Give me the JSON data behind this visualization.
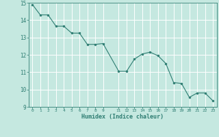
{
  "x": [
    0,
    1,
    2,
    3,
    4,
    5,
    6,
    7,
    8,
    9,
    11,
    12,
    13,
    14,
    15,
    16,
    17,
    18,
    19,
    20,
    21,
    22,
    23
  ],
  "y": [
    14.9,
    14.3,
    14.3,
    13.65,
    13.65,
    13.25,
    13.25,
    12.6,
    12.6,
    12.65,
    11.05,
    11.05,
    11.75,
    12.05,
    12.15,
    11.95,
    11.5,
    10.4,
    10.35,
    9.55,
    9.8,
    9.8,
    9.35
  ],
  "line_color": "#2e7d72",
  "marker_color": "#2e7d72",
  "bg_color": "#c5e8e0",
  "grid_color": "#ffffff",
  "xlabel": "Humidex (Indice chaleur)",
  "xlim": [
    -0.5,
    23.5
  ],
  "ylim": [
    9,
    15
  ],
  "yticks": [
    9,
    10,
    11,
    12,
    13,
    14,
    15
  ],
  "xticks": [
    0,
    1,
    2,
    3,
    4,
    5,
    6,
    7,
    8,
    9,
    11,
    12,
    13,
    14,
    15,
    16,
    17,
    18,
    19,
    20,
    21,
    22,
    23
  ],
  "xtick_labels": [
    "0",
    "1",
    "2",
    "3",
    "4",
    "5",
    "6",
    "7",
    "8",
    "9",
    "11",
    "12",
    "13",
    "14",
    "15",
    "16",
    "17",
    "18",
    "19",
    "20",
    "21",
    "22",
    "23"
  ],
  "label_color": "#2e7d72",
  "tick_color": "#2e7d72",
  "figsize": [
    3.2,
    2.0
  ],
  "dpi": 100
}
